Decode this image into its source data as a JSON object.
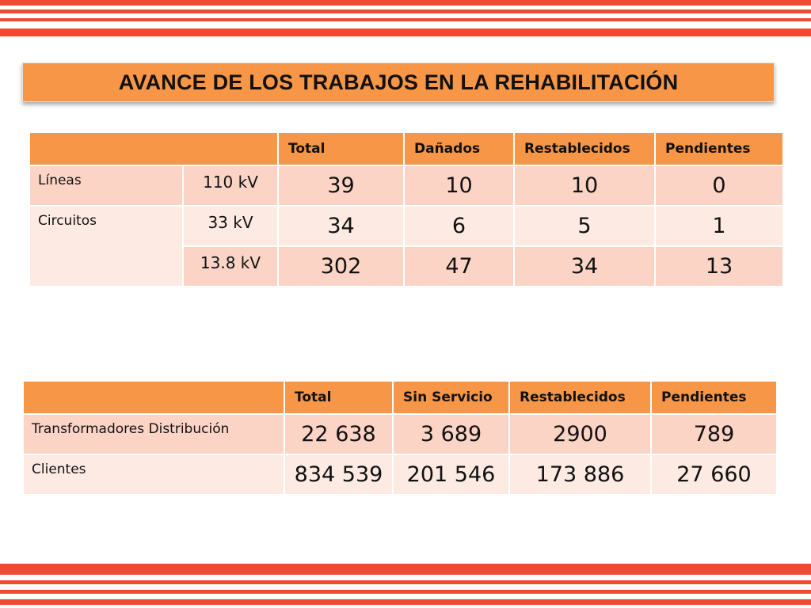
{
  "title": "AVANCE DE LOS TRABAJOS EN LA REHABILITACIÓN",
  "table1": {
    "headers": [
      "Total",
      "Dañados",
      "Restablecidos",
      "Pendientes"
    ],
    "rows": [
      {
        "category": "Líneas",
        "voltage": "110 kV",
        "values": [
          "39",
          "10",
          "10",
          "0"
        ]
      },
      {
        "category": "Circuitos",
        "voltage": "33 kV",
        "values": [
          "34",
          "6",
          "5",
          "1"
        ]
      },
      {
        "category": "",
        "voltage": "13.8 kV",
        "values": [
          "302",
          "47",
          "34",
          "13"
        ]
      }
    ]
  },
  "table2": {
    "headers": [
      "Total",
      "Sin Servicio",
      "Restablecidos",
      "Pendientes"
    ],
    "rows": [
      {
        "category": "Transformadores Distribución",
        "values": [
          "22 638",
          "3 689",
          "2900",
          "789"
        ]
      },
      {
        "category": "Clientes",
        "values": [
          "834 539",
          "201 546",
          "173 886",
          "27 660"
        ]
      }
    ]
  },
  "colors": {
    "stripe": "#ef4b33",
    "header": "#f79646",
    "row_dark": "#fbd4c6",
    "row_light": "#fdeae3"
  }
}
